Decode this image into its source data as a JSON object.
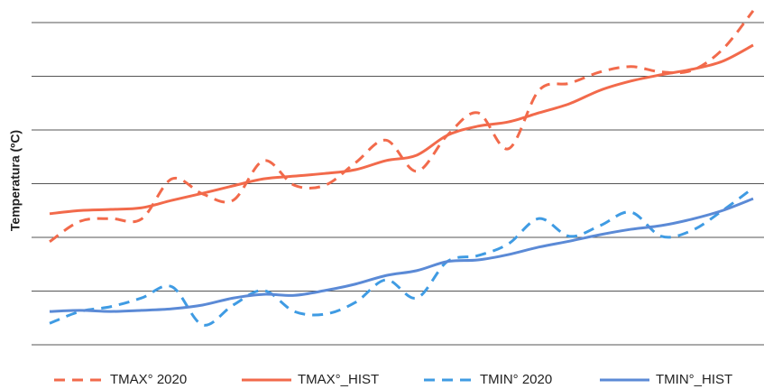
{
  "chart_data": {
    "type": "line",
    "y_label": "Temperatura (ºC)",
    "categories": [
      null,
      null,
      null,
      null,
      null,
      null,
      null,
      null,
      null,
      null,
      null,
      null,
      null,
      null,
      null,
      null,
      null,
      null,
      null,
      null,
      null,
      null,
      null,
      null
    ],
    "series": [
      {
        "name": "TMAX° 2020",
        "color": "#f26a4b",
        "dash": true,
        "values": [
          1.92,
          2.3,
          2.35,
          2.34,
          3.09,
          2.81,
          2.69,
          3.43,
          2.97,
          2.97,
          3.39,
          3.81,
          3.23,
          3.9,
          4.32,
          3.65,
          4.74,
          4.87,
          5.08,
          5.18,
          5.08,
          5.11,
          5.5,
          6.22
        ]
      },
      {
        "name": "TMAX°_HIST",
        "color": "#f26a4b",
        "dash": false,
        "values": [
          2.44,
          2.5,
          2.52,
          2.55,
          2.69,
          2.82,
          2.96,
          3.09,
          3.14,
          3.19,
          3.26,
          3.43,
          3.53,
          3.9,
          4.07,
          4.15,
          4.32,
          4.49,
          4.74,
          4.91,
          5.03,
          5.13,
          5.28,
          5.58
        ]
      },
      {
        "name": "TMIN° 2020",
        "color": "#3f9be3",
        "dash": true,
        "values": [
          0.4,
          0.62,
          0.71,
          0.87,
          1.08,
          0.37,
          0.74,
          1.01,
          0.62,
          0.57,
          0.79,
          1.21,
          0.87,
          1.55,
          1.66,
          1.88,
          2.35,
          2.02,
          2.22,
          2.47,
          2.02,
          2.13,
          2.5,
          2.92
        ]
      },
      {
        "name": "TMIN°_HIST",
        "color": "#5b8ad6",
        "dash": false,
        "values": [
          0.62,
          0.64,
          0.62,
          0.64,
          0.67,
          0.74,
          0.87,
          0.94,
          0.92,
          1.01,
          1.13,
          1.29,
          1.38,
          1.55,
          1.58,
          1.68,
          1.82,
          1.93,
          2.05,
          2.15,
          2.22,
          2.34,
          2.5,
          2.72
        ]
      }
    ],
    "ylim": [
      -0.2,
      6.4
    ],
    "gridlines": [
      0,
      1,
      2,
      3,
      4,
      5,
      6
    ],
    "grid": true,
    "legend": "bottom"
  }
}
